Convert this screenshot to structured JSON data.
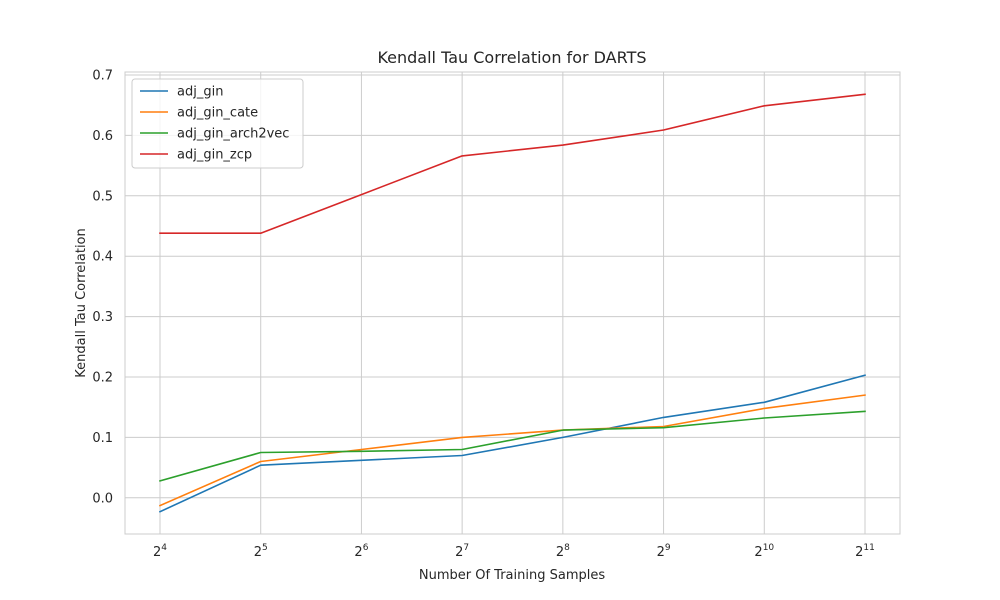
{
  "chart_data": {
    "type": "line",
    "title": "Kendall Tau Correlation for DARTS",
    "xlabel": "Number Of Training Samples",
    "ylabel": "Kendall Tau Correlation",
    "x_scale": "log2",
    "x_base_label": "2",
    "x": [
      16,
      32,
      64,
      128,
      256,
      512,
      1024,
      2048
    ],
    "x_tick_exponents": [
      "4",
      "5",
      "6",
      "7",
      "8",
      "9",
      "10",
      "11"
    ],
    "yticks": [
      0.0,
      0.1,
      0.2,
      0.3,
      0.4,
      0.5,
      0.6,
      0.7
    ],
    "ytick_labels": [
      "0.0",
      "0.1",
      "0.2",
      "0.3",
      "0.4",
      "0.5",
      "0.6",
      "0.7"
    ],
    "ylim": [
      -0.06,
      0.705
    ],
    "grid": true,
    "legend_position": "top-left",
    "series": [
      {
        "name": "adj_gin",
        "color": "#1f77b4",
        "values": [
          -0.023,
          0.054,
          0.062,
          0.07,
          0.1,
          0.133,
          0.158,
          0.203
        ]
      },
      {
        "name": "adj_gin_cate",
        "color": "#ff7f0e",
        "values": [
          -0.013,
          0.06,
          0.08,
          0.1,
          0.112,
          0.118,
          0.148,
          0.17
        ]
      },
      {
        "name": "adj_gin_arch2vec",
        "color": "#2ca02c",
        "values": [
          0.028,
          0.075,
          0.077,
          0.08,
          0.112,
          0.116,
          0.132,
          0.143
        ]
      },
      {
        "name": "adj_gin_zcp",
        "color": "#d62728",
        "values": [
          0.438,
          0.438,
          0.502,
          0.566,
          0.584,
          0.609,
          0.649,
          0.668
        ]
      }
    ]
  }
}
